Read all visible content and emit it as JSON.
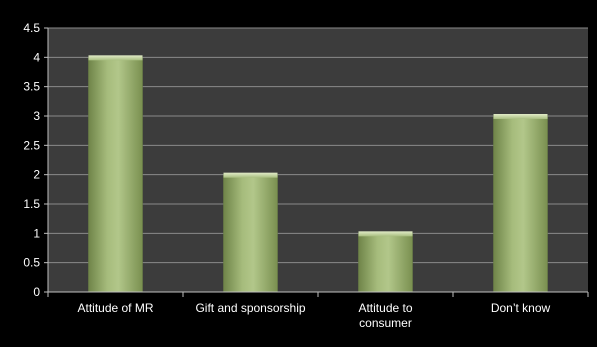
{
  "chart_data": {
    "type": "bar",
    "title": "",
    "xlabel": "",
    "ylabel": "",
    "categories": [
      "Attitude of MR",
      "Gift and sponsorship",
      "Attitude to consumer",
      "Don’t know"
    ],
    "category_lines": [
      [
        "Attitude of MR"
      ],
      [
        "Gift and sponsorship"
      ],
      [
        "Attitude to",
        "consumer"
      ],
      [
        "Don’t know"
      ]
    ],
    "values": [
      4,
      2,
      1,
      3
    ],
    "ylim": [
      0,
      4.5
    ],
    "yticks": [
      0,
      0.5,
      1,
      1.5,
      2,
      2.5,
      3,
      3.5,
      4,
      4.5
    ],
    "ytick_labels": [
      "0",
      "0.5",
      "1",
      "1.5",
      "2",
      "2.5",
      "3",
      "3.5",
      "4",
      "4.5"
    ],
    "grid": true,
    "legend": "none",
    "colors": {
      "page_background": "#000000",
      "plot_background": "#3c3c3c",
      "grid": "#8a8a8a",
      "axis": "#bfbfbf",
      "bar_top": "#b4c98e",
      "bar_mid": "#9ab36e",
      "bar_edge": "#6a7f46",
      "text": "#ffffff"
    }
  }
}
